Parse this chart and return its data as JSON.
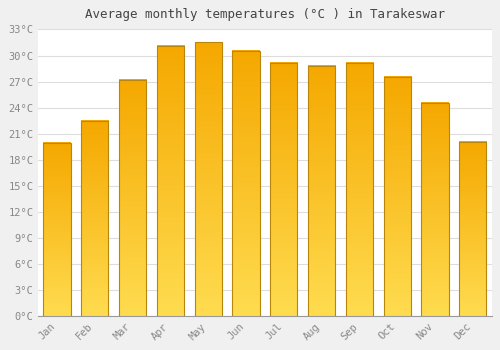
{
  "months": [
    "Jan",
    "Feb",
    "Mar",
    "Apr",
    "May",
    "Jun",
    "Jul",
    "Aug",
    "Sep",
    "Oct",
    "Nov",
    "Dec"
  ],
  "values": [
    20.0,
    22.5,
    27.2,
    31.1,
    31.5,
    30.5,
    29.1,
    28.8,
    29.1,
    27.5,
    24.5,
    20.1
  ],
  "bar_color_top": "#F5A800",
  "bar_color_bottom": "#FFD966",
  "bar_edge_color": "#B8860B",
  "title": "Average monthly temperatures (°C ) in Tarakeswar",
  "ylim": [
    0,
    33
  ],
  "ytick_step": 3,
  "background_color": "#f0f0f0",
  "plot_bg_color": "#ffffff",
  "grid_color": "#dddddd",
  "title_fontsize": 9,
  "tick_fontsize": 7.5,
  "tick_color": "#888888",
  "title_color": "#444444"
}
